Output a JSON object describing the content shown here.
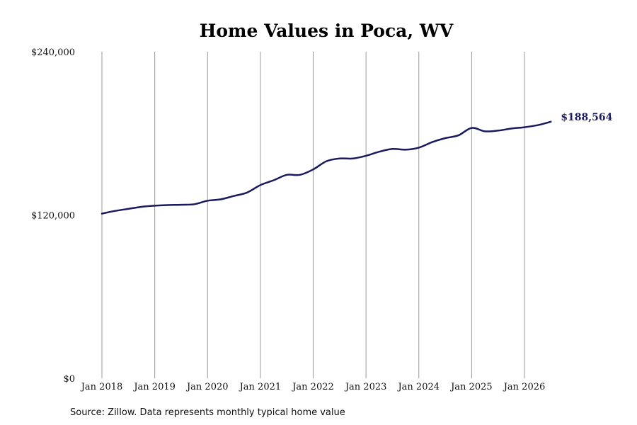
{
  "chart_data": {
    "type": "line",
    "title": "Home Values in Poca, WV",
    "xlabel": "",
    "ylabel": "",
    "ylim": [
      0,
      240000
    ],
    "y_ticks": [
      0,
      120000,
      240000
    ],
    "y_tick_labels": [
      "$0",
      "$120,000",
      "$240,000"
    ],
    "x_ticks": [
      2018,
      2019,
      2020,
      2021,
      2022,
      2023,
      2024,
      2025,
      2026
    ],
    "x_tick_labels": [
      "Jan 2018",
      "Jan 2019",
      "Jan 2020",
      "Jan 2021",
      "Jan 2022",
      "Jan 2023",
      "Jan 2024",
      "Jan 2025",
      "Jan 2026"
    ],
    "grid": "vertical",
    "series": [
      {
        "color": "#1a1a5e",
        "points": [
          [
            "2018-01",
            121000
          ],
          [
            "2018-04",
            123000
          ],
          [
            "2018-07",
            124500
          ],
          [
            "2018-10",
            126000
          ],
          [
            "2019-01",
            126800
          ],
          [
            "2019-04",
            127300
          ],
          [
            "2019-07",
            127500
          ],
          [
            "2019-10",
            127900
          ],
          [
            "2020-01",
            130500
          ],
          [
            "2020-04",
            131500
          ],
          [
            "2020-07",
            134000
          ],
          [
            "2020-10",
            136500
          ],
          [
            "2021-01",
            142000
          ],
          [
            "2021-04",
            145500
          ],
          [
            "2021-07",
            149500
          ],
          [
            "2021-10",
            149500
          ],
          [
            "2022-01",
            153500
          ],
          [
            "2022-04",
            159500
          ],
          [
            "2022-07",
            161500
          ],
          [
            "2022-10",
            161500
          ],
          [
            "2023-01",
            163500
          ],
          [
            "2023-04",
            166500
          ],
          [
            "2023-07",
            168500
          ],
          [
            "2023-10",
            168000
          ],
          [
            "2024-01",
            169500
          ],
          [
            "2024-04",
            173500
          ],
          [
            "2024-07",
            176500
          ],
          [
            "2024-10",
            178500
          ],
          [
            "2025-01",
            184000
          ],
          [
            "2025-04",
            181500
          ],
          [
            "2025-07",
            182000
          ],
          [
            "2025-10",
            183500
          ],
          [
            "2026-01",
            184500
          ],
          [
            "2026-04",
            186000
          ],
          [
            "2026-07",
            188564
          ]
        ]
      }
    ],
    "last_value_label": "$188,564"
  },
  "footer": {
    "source": "Source: Zillow. Data represents monthly typical home value"
  }
}
